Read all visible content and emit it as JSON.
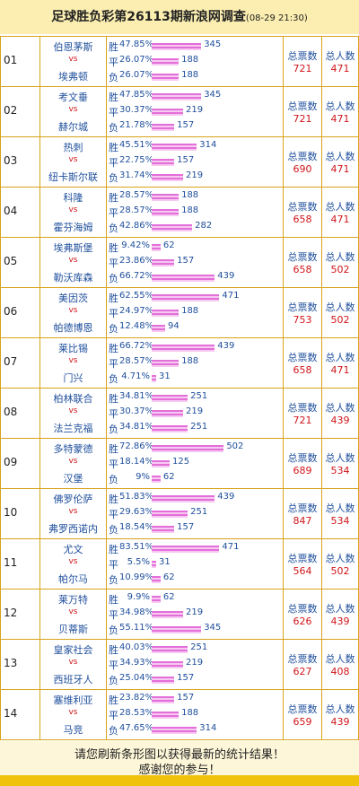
{
  "header": {
    "title": "足球胜负彩第26113期新浪网调查",
    "time": "(08-29 21:30)"
  },
  "matches": [
    {
      "no": "01",
      "home": "伯恩茅斯",
      "vs": "vs",
      "away": "埃弗顿",
      "rows": [
        {
          "label": "胜",
          "pct": "47.85%",
          "count": 345
        },
        {
          "label": "平",
          "pct": "26.07%",
          "count": 188
        },
        {
          "label": "负",
          "pct": "26.07%",
          "count": 188
        }
      ],
      "votes_label": "总票数",
      "votes": 721,
      "people_label": "总人数",
      "people": 471
    },
    {
      "no": "02",
      "home": "考文垂",
      "vs": "vs",
      "away": "赫尔城",
      "rows": [
        {
          "label": "胜",
          "pct": "47.85%",
          "count": 345
        },
        {
          "label": "平",
          "pct": "30.37%",
          "count": 219
        },
        {
          "label": "负",
          "pct": "21.78%",
          "count": 157
        }
      ],
      "votes_label": "总票数",
      "votes": 721,
      "people_label": "总人数",
      "people": 471
    },
    {
      "no": "03",
      "home": "热刺",
      "vs": "vs",
      "away": "纽卡斯尔联",
      "rows": [
        {
          "label": "胜",
          "pct": "45.51%",
          "count": 314
        },
        {
          "label": "平",
          "pct": "22.75%",
          "count": 157
        },
        {
          "label": "负",
          "pct": "31.74%",
          "count": 219
        }
      ],
      "votes_label": "总票数",
      "votes": 690,
      "people_label": "总人数",
      "people": 471
    },
    {
      "no": "04",
      "home": "科隆",
      "vs": "vs",
      "away": "霍芬海姆",
      "rows": [
        {
          "label": "胜",
          "pct": "28.57%",
          "count": 188
        },
        {
          "label": "平",
          "pct": "28.57%",
          "count": 188
        },
        {
          "label": "负",
          "pct": "42.86%",
          "count": 282
        }
      ],
      "votes_label": "总票数",
      "votes": 658,
      "people_label": "总人数",
      "people": 471
    },
    {
      "no": "05",
      "home": "埃弗斯堡",
      "vs": "vs",
      "away": "勒沃库森",
      "rows": [
        {
          "label": "胜",
          "pct": "9.42%",
          "count": 62
        },
        {
          "label": "平",
          "pct": "23.86%",
          "count": 157
        },
        {
          "label": "负",
          "pct": "66.72%",
          "count": 439
        }
      ],
      "votes_label": "总票数",
      "votes": 658,
      "people_label": "总人数",
      "people": 502
    },
    {
      "no": "06",
      "home": "美因茨",
      "vs": "vs",
      "away": "帕德博恩",
      "rows": [
        {
          "label": "胜",
          "pct": "62.55%",
          "count": 471
        },
        {
          "label": "平",
          "pct": "24.97%",
          "count": 188
        },
        {
          "label": "负",
          "pct": "12.48%",
          "count": 94
        }
      ],
      "votes_label": "总票数",
      "votes": 753,
      "people_label": "总人数",
      "people": 502
    },
    {
      "no": "07",
      "home": "莱比锡",
      "vs": "vs",
      "away": "门兴",
      "rows": [
        {
          "label": "胜",
          "pct": "66.72%",
          "count": 439
        },
        {
          "label": "平",
          "pct": "28.57%",
          "count": 188
        },
        {
          "label": "负",
          "pct": "4.71%",
          "count": 31
        }
      ],
      "votes_label": "总票数",
      "votes": 658,
      "people_label": "总人数",
      "people": 471
    },
    {
      "no": "08",
      "home": "柏林联合",
      "vs": "vs",
      "away": "法兰克福",
      "rows": [
        {
          "label": "胜",
          "pct": "34.81%",
          "count": 251
        },
        {
          "label": "平",
          "pct": "30.37%",
          "count": 219
        },
        {
          "label": "负",
          "pct": "34.81%",
          "count": 251
        }
      ],
      "votes_label": "总票数",
      "votes": 721,
      "people_label": "总人数",
      "people": 439
    },
    {
      "no": "09",
      "home": "多特蒙德",
      "vs": "vs",
      "away": "汉堡",
      "rows": [
        {
          "label": "胜",
          "pct": "72.86%",
          "count": 502
        },
        {
          "label": "平",
          "pct": "18.14%",
          "count": 125
        },
        {
          "label": "负",
          "pct": "9%",
          "count": 62
        }
      ],
      "votes_label": "总票数",
      "votes": 689,
      "people_label": "总人数",
      "people": 534
    },
    {
      "no": "10",
      "home": "佛罗伦萨",
      "vs": "vs",
      "away": "弗罗西诺内",
      "rows": [
        {
          "label": "胜",
          "pct": "51.83%",
          "count": 439
        },
        {
          "label": "平",
          "pct": "29.63%",
          "count": 251
        },
        {
          "label": "负",
          "pct": "18.54%",
          "count": 157
        }
      ],
      "votes_label": "总票数",
      "votes": 847,
      "people_label": "总人数",
      "people": 534
    },
    {
      "no": "11",
      "home": "尤文",
      "vs": "vs",
      "away": "帕尔马",
      "rows": [
        {
          "label": "胜",
          "pct": "83.51%",
          "count": 471
        },
        {
          "label": "平",
          "pct": "5.5%",
          "count": 31
        },
        {
          "label": "负",
          "pct": "10.99%",
          "count": 62
        }
      ],
      "votes_label": "总票数",
      "votes": 564,
      "people_label": "总人数",
      "people": 502
    },
    {
      "no": "12",
      "home": "莱万特",
      "vs": "vs",
      "away": "贝蒂斯",
      "rows": [
        {
          "label": "胜",
          "pct": "9.9%",
          "count": 62
        },
        {
          "label": "平",
          "pct": "34.98%",
          "count": 219
        },
        {
          "label": "负",
          "pct": "55.11%",
          "count": 345
        }
      ],
      "votes_label": "总票数",
      "votes": 626,
      "people_label": "总人数",
      "people": 439
    },
    {
      "no": "13",
      "home": "皇家社会",
      "vs": "vs",
      "away": "西班牙人",
      "rows": [
        {
          "label": "胜",
          "pct": "40.03%",
          "count": 251
        },
        {
          "label": "平",
          "pct": "34.93%",
          "count": 219
        },
        {
          "label": "负",
          "pct": "25.04%",
          "count": 157
        }
      ],
      "votes_label": "总票数",
      "votes": 627,
      "people_label": "总人数",
      "people": 408
    },
    {
      "no": "14",
      "home": "塞维利亚",
      "vs": "vs",
      "away": "马竞",
      "rows": [
        {
          "label": "胜",
          "pct": "23.82%",
          "count": 157
        },
        {
          "label": "平",
          "pct": "28.53%",
          "count": 188
        },
        {
          "label": "负",
          "pct": "47.65%",
          "count": 314
        }
      ],
      "votes_label": "总票数",
      "votes": 659,
      "people_label": "总人数",
      "people": 439
    }
  ],
  "footer": {
    "line1": "请您刷新条形图以获得最新的统计结果！",
    "line2": "感谢您的参与！"
  }
}
